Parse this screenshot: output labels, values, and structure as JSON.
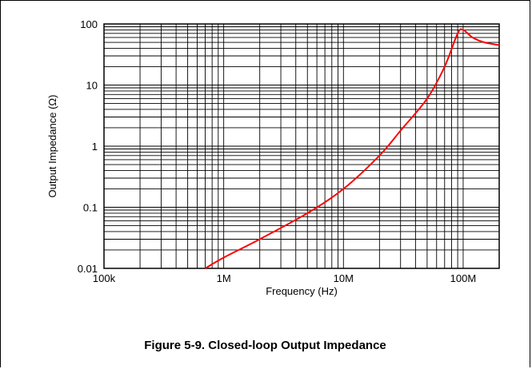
{
  "caption": "Figure 5-9. Closed-loop Output Impedance",
  "chart_data": {
    "type": "line",
    "title": "",
    "xlabel": "Frequency (Hz)",
    "ylabel": "Output Impedance (Ω)",
    "xscale": "log",
    "yscale": "log",
    "xlim": [
      100000,
      200000000
    ],
    "ylim": [
      0.01,
      100
    ],
    "xticks": [
      100000,
      1000000,
      10000000,
      100000000
    ],
    "xtick_labels": [
      "100k",
      "1M",
      "10M",
      "100M"
    ],
    "yticks": [
      0.01,
      0.1,
      1,
      10,
      100
    ],
    "ytick_labels": [
      "0.01",
      "0.1",
      "1",
      "10",
      "100"
    ],
    "grid": true,
    "legend": "none",
    "series": [
      {
        "color": "#ff0000",
        "x": [
          700000,
          1000000,
          2000000,
          5000000,
          10000000,
          20000000,
          30000000,
          50000000,
          70000000,
          90000000,
          100000000,
          120000000,
          150000000,
          200000000
        ],
        "y": [
          0.01,
          0.015,
          0.03,
          0.08,
          0.2,
          0.7,
          1.8,
          6,
          20,
          70,
          80,
          60,
          50,
          45
        ]
      }
    ]
  }
}
